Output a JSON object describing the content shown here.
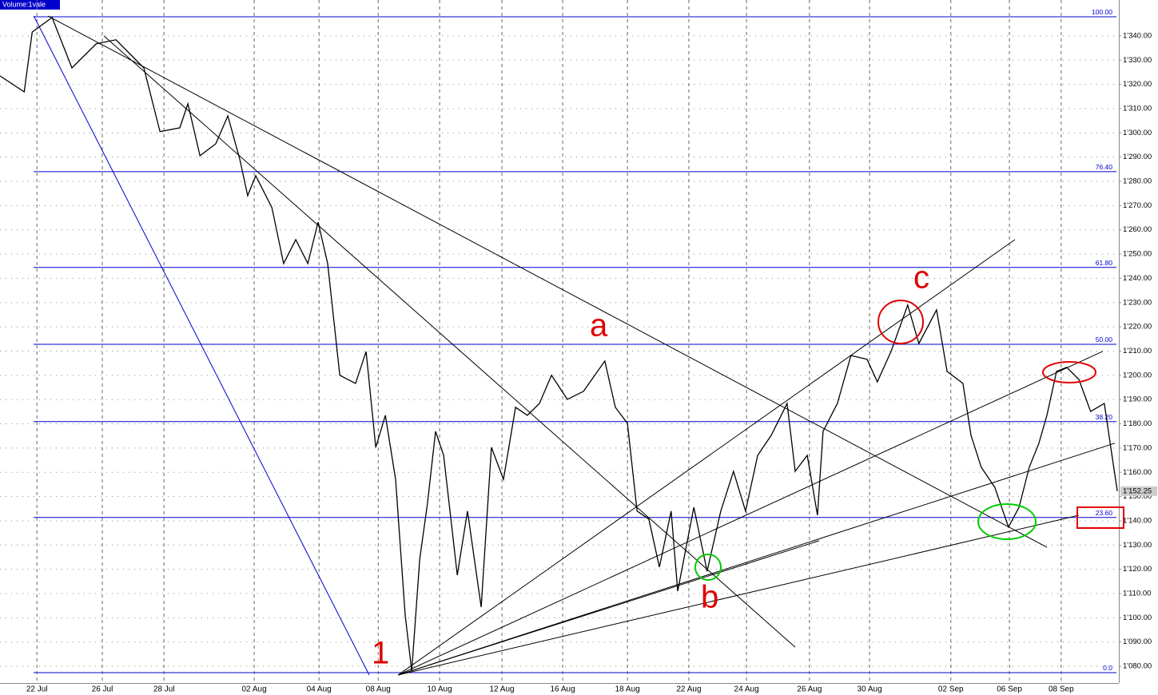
{
  "chart_data": {
    "type": "line",
    "volume_label": "Volume:1vale",
    "series": [
      {
        "name": "1vale",
        "color": "#000000",
        "x": [
          -1.19,
          -0.41,
          -0.15,
          0.49,
          1.13,
          1.91,
          2.55,
          3.45,
          3.97,
          4.61,
          4.87,
          5.26,
          5.77,
          6.16,
          6.55,
          6.8,
          7.06,
          7.58,
          7.96,
          8.35,
          8.74,
          9.07,
          9.38,
          9.77,
          10.28,
          10.62,
          10.93,
          11.24,
          11.57,
          11.88,
          12.09,
          12.35,
          12.6,
          12.86,
          13.12,
          13.56,
          13.89,
          14.33,
          14.66,
          15.05,
          15.44,
          15.82,
          16.21,
          16.6,
          17.11,
          17.63,
          18.32,
          18.66,
          19.05,
          19.36,
          19.74,
          20.08,
          20.46,
          20.67,
          21.19,
          21.62,
          22.06,
          22.47,
          22.86,
          23.25,
          23.69,
          24.2,
          24.46,
          24.85,
          25.18,
          25.36,
          25.82,
          26.26,
          26.78,
          27.11,
          27.55,
          28.09,
          28.45,
          29.02,
          29.36,
          29.87,
          30.13,
          30.46,
          30.9,
          31.34,
          31.68,
          32.01,
          32.32,
          32.58,
          32.89,
          33.22,
          33.61,
          33.99,
          34.43,
          34.64,
          34.85
        ],
        "values": [
          1323.5,
          1316.9,
          1341.6,
          1347.6,
          1326.8,
          1336.7,
          1338.4,
          1326.8,
          1300.5,
          1302.1,
          1312.0,
          1290.6,
          1295.5,
          1307.0,
          1288.9,
          1274.1,
          1282.3,
          1269.2,
          1246.1,
          1256.0,
          1246.1,
          1263.2,
          1246.1,
          1200.0,
          1196.7,
          1209.8,
          1170.3,
          1183.5,
          1157.1,
          1101.1,
          1078.0,
          1124.2,
          1147.2,
          1176.9,
          1167.0,
          1117.6,
          1144.0,
          1104.4,
          1170.3,
          1157.1,
          1186.8,
          1183.5,
          1188.4,
          1200.0,
          1190.1,
          1193.4,
          1205.9,
          1186.8,
          1180.2,
          1144.0,
          1140.7,
          1120.9,
          1144.0,
          1111.0,
          1145.6,
          1119.2,
          1144.0,
          1160.4,
          1144.0,
          1167.0,
          1175.3,
          1188.4,
          1160.4,
          1167.0,
          1142.3,
          1176.9,
          1188.4,
          1208.2,
          1206.6,
          1197.3,
          1209.8,
          1229.0,
          1213.1,
          1227.0,
          1201.6,
          1196.7,
          1175.3,
          1162.1,
          1153.8,
          1137.4,
          1145.6,
          1162.1,
          1171.9,
          1183.5,
          1201.6,
          1203.3,
          1198.3,
          1185.1,
          1188.4,
          1170.3,
          1152.25
        ],
        "last_value_label": "1'152.25"
      }
    ],
    "fib_levels": [
      {
        "value": 1347.9,
        "label": "100.00"
      },
      {
        "value": 1284.0,
        "label": "76.40"
      },
      {
        "value": 1244.5,
        "label": "61.80"
      },
      {
        "value": 1212.8,
        "label": "50.00"
      },
      {
        "value": 1180.9,
        "label": "38.20"
      },
      {
        "value": 1141.4,
        "label": "23.60"
      },
      {
        "value": 1077.4,
        "label": "0.0"
      }
    ],
    "fib_color": "#0000cc",
    "trend_lines": [
      {
        "color": "#0000cc",
        "x": [
          -0.1,
          10.72
        ],
        "y": [
          1348.2,
          1076.4
        ]
      },
      {
        "color": "#000000",
        "x": [
          0.36,
          32.58
        ],
        "y": [
          1348.2,
          1129.1
        ]
      },
      {
        "color": "#000000",
        "x": [
          2.16,
          24.46
        ],
        "y": [
          1340.0,
          1087.9
        ]
      },
      {
        "color": "#000000",
        "x": [
          11.65,
          31.55
        ],
        "y": [
          1076.4,
          1256.0
        ]
      },
      {
        "color": "#000000",
        "x": [
          11.65,
          34.38
        ],
        "y": [
          1076.4,
          1209.9
        ]
      },
      {
        "color": "#000000",
        "x": [
          11.65,
          34.77
        ],
        "y": [
          1076.4,
          1172.0
        ]
      },
      {
        "color": "#000000",
        "x": [
          11.65,
          25.23
        ],
        "y": [
          1076.4,
          1131.8
        ]
      },
      {
        "color": "#000000",
        "x": [
          11.65,
          33.61
        ],
        "y": [
          1076.4,
          1142.3
        ]
      }
    ],
    "annotations": [
      "1",
      "a",
      "b",
      "c"
    ],
    "xlim": [
      -1.19,
      34.9
    ],
    "xticks": [
      {
        "value": 0,
        "label": "22 Jul"
      },
      {
        "value": 2.11,
        "label": "26 Jul"
      },
      {
        "value": 4.1,
        "label": "28 Jul"
      },
      {
        "value": 7.01,
        "label": "02 Aug"
      },
      {
        "value": 9.1,
        "label": "04 Aug"
      },
      {
        "value": 11.01,
        "label": "08 Aug"
      },
      {
        "value": 12.99,
        "label": "10 Aug"
      },
      {
        "value": 15.0,
        "label": "12 Aug"
      },
      {
        "value": 16.96,
        "label": "16 Aug"
      },
      {
        "value": 19.05,
        "label": "18 Aug"
      },
      {
        "value": 21.03,
        "label": "22 Aug"
      },
      {
        "value": 22.89,
        "label": "24 Aug"
      },
      {
        "value": 24.92,
        "label": "26 Aug"
      },
      {
        "value": 26.86,
        "label": "30 Aug"
      },
      {
        "value": 29.48,
        "label": "02 Sep"
      },
      {
        "value": 31.37,
        "label": "06 Sep"
      },
      {
        "value": 33.04,
        "label": "08 Sep"
      }
    ],
    "ylim": [
      1073.1,
      1354.8
    ],
    "yticks": [
      {
        "value": 1080,
        "label": "1'080.00"
      },
      {
        "value": 1090,
        "label": "1'090.00"
      },
      {
        "value": 1100,
        "label": "1'100.00"
      },
      {
        "value": 1110,
        "label": "1'110.00"
      },
      {
        "value": 1120,
        "label": "1'120.00"
      },
      {
        "value": 1130,
        "label": "1'130.00"
      },
      {
        "value": 1140,
        "label": "1'140.00"
      },
      {
        "value": 1150,
        "label": "1'150.00"
      },
      {
        "value": 1160,
        "label": "1'160.00"
      },
      {
        "value": 1170,
        "label": "1'170.00"
      },
      {
        "value": 1180,
        "label": "1'180.00"
      },
      {
        "value": 1190,
        "label": "1'190.00"
      },
      {
        "value": 1200,
        "label": "1'200.00"
      },
      {
        "value": 1210,
        "label": "1'210.00"
      },
      {
        "value": 1220,
        "label": "1'220.00"
      },
      {
        "value": 1230,
        "label": "1'230.00"
      },
      {
        "value": 1240,
        "label": "1'240.00"
      },
      {
        "value": 1250,
        "label": "1'250.00"
      },
      {
        "value": 1260,
        "label": "1'260.00"
      },
      {
        "value": 1270,
        "label": "1'270.00"
      },
      {
        "value": 1280,
        "label": "1'280.00"
      },
      {
        "value": 1290,
        "label": "1'290.00"
      },
      {
        "value": 1300,
        "label": "1'300.00"
      },
      {
        "value": 1310,
        "label": "1'310.00"
      },
      {
        "value": 1320,
        "label": "1'320.00"
      },
      {
        "value": 1330,
        "label": "1'330.00"
      },
      {
        "value": 1340,
        "label": "1'340.00"
      }
    ],
    "grid": true
  }
}
